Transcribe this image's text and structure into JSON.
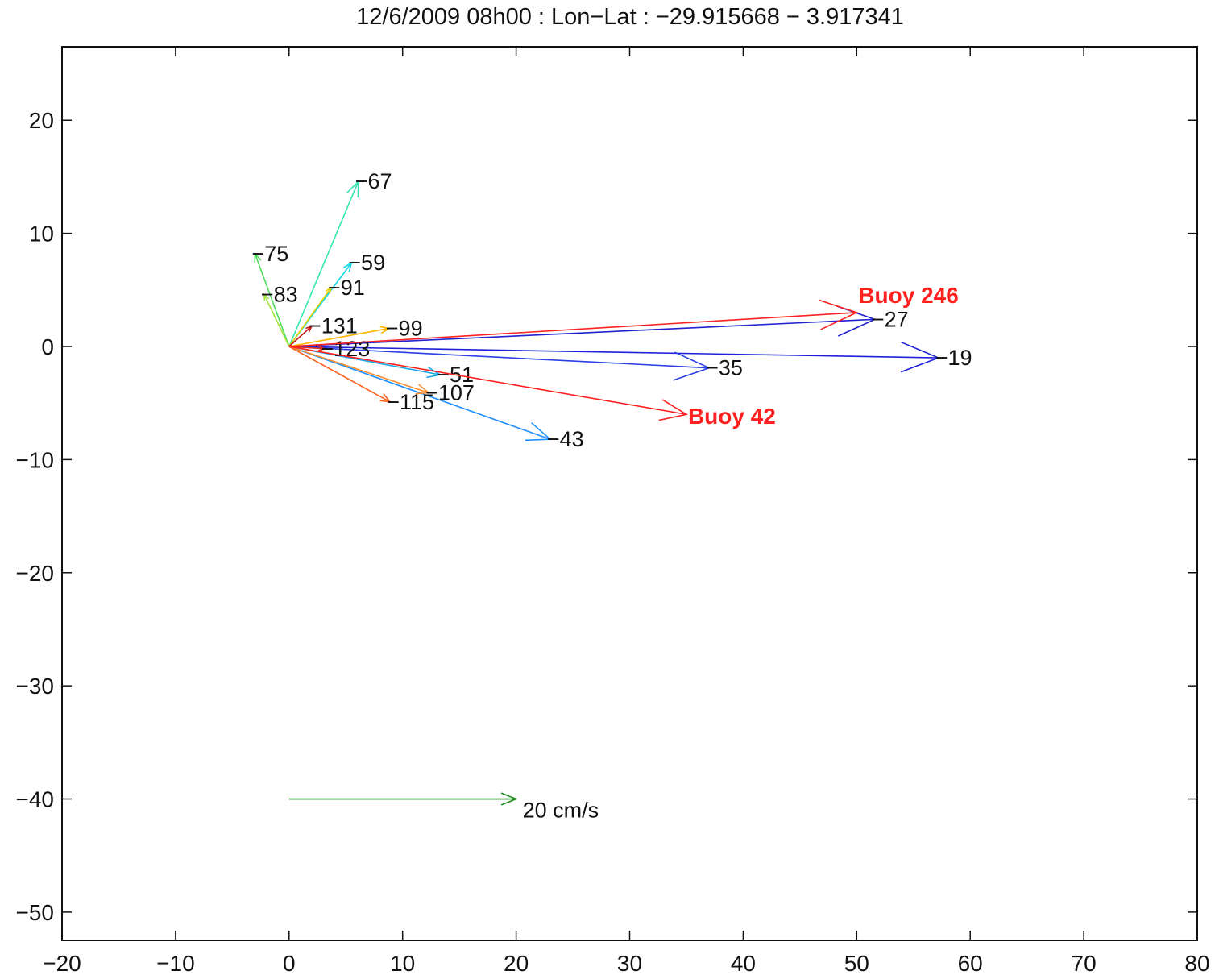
{
  "chart_data": {
    "type": "quiver",
    "title": "12/6/2009 08h00 : Lon−Lat : −29.915668 − 3.917341",
    "xlim": [
      -20,
      80
    ],
    "ylim": [
      -52.5,
      26.5
    ],
    "xticks": [
      -20,
      -10,
      0,
      10,
      20,
      30,
      40,
      50,
      60,
      70,
      80
    ],
    "yticks": [
      -50,
      -40,
      -30,
      -20,
      -10,
      0,
      10,
      20
    ],
    "xtick_labels": [
      "−20",
      "−10",
      "0",
      "10",
      "20",
      "30",
      "40",
      "50",
      "60",
      "70",
      "80"
    ],
    "ytick_labels": [
      "−50",
      "−40",
      "−30",
      "−20",
      "−10",
      "0",
      "10",
      "20"
    ],
    "grid": false,
    "origin": [
      0,
      0
    ],
    "series": [
      {
        "label": "−19",
        "u": 57.2,
        "v": -1.0,
        "color": "#2020d8"
      },
      {
        "label": "−27",
        "u": 51.6,
        "v": 2.4,
        "color": "#2222d0"
      },
      {
        "label": "−35",
        "u": 37.0,
        "v": -1.9,
        "color": "#2a3fe6"
      },
      {
        "label": "−43",
        "u": 23.0,
        "v": -8.2,
        "color": "#1e90ff"
      },
      {
        "label": "−51",
        "u": 13.3,
        "v": -2.5,
        "color": "#1aa7e8"
      },
      {
        "label": "−59",
        "u": 5.5,
        "v": 7.4,
        "color": "#10d8e8"
      },
      {
        "label": "−67",
        "u": 6.1,
        "v": 14.6,
        "color": "#33e6b0"
      },
      {
        "label": "−75",
        "u": -3.0,
        "v": 8.2,
        "color": "#4ddc5a"
      },
      {
        "label": "−83",
        "u": -2.2,
        "v": 4.6,
        "color": "#a4e43a"
      },
      {
        "label": "−91",
        "u": 3.7,
        "v": 5.2,
        "color": "#e8d000"
      },
      {
        "label": "−99",
        "u": 8.8,
        "v": 1.6,
        "color": "#ffb300"
      },
      {
        "label": "−107",
        "u": 12.3,
        "v": -4.1,
        "color": "#ff9030"
      },
      {
        "label": "−115",
        "u": 8.9,
        "v": -4.9,
        "color": "#ff6020"
      },
      {
        "label": "−123",
        "u": 3.1,
        "v": -0.2,
        "color": "#e03020"
      },
      {
        "label": "−131",
        "u": 2.0,
        "v": 1.8,
        "color": "#c01818"
      }
    ],
    "buoys": [
      {
        "label": "Buoy 246",
        "u": 50.0,
        "v": 3.0,
        "color": "#ff2020"
      },
      {
        "label": "Buoy 42",
        "u": 35.0,
        "v": -6.0,
        "color": "#ff2020"
      }
    ],
    "scale_arrow": {
      "x0": 0,
      "y0": -40,
      "u": 20,
      "v": 0,
      "label": "20 cm/s",
      "color": "#1a8a1a"
    }
  }
}
